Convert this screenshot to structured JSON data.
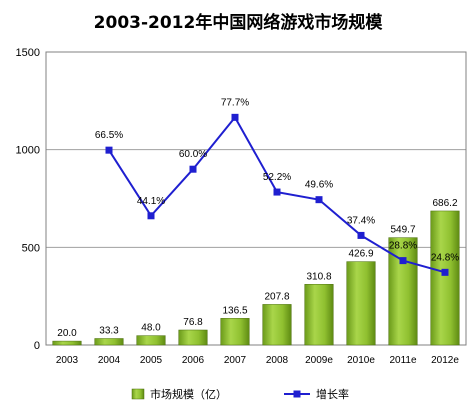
{
  "chart_data": {
    "type": "bar",
    "title": "2003-2012年中国网络游戏市场规模",
    "categories": [
      "2003",
      "2004",
      "2005",
      "2006",
      "2007",
      "2008",
      "2009e",
      "2010e",
      "2011e",
      "2012e"
    ],
    "series": [
      {
        "name": "市场规模（亿）",
        "type": "bar",
        "values": [
          20.0,
          33.3,
          48.0,
          76.8,
          136.5,
          207.8,
          310.8,
          426.9,
          549.7,
          686.2
        ],
        "labels": [
          "20.0",
          "33.3",
          "48.0",
          "76.8",
          "136.5",
          "207.8",
          "310.8",
          "426.9",
          "549.7",
          "686.2"
        ],
        "color": "#99cc33"
      },
      {
        "name": "增长率",
        "type": "line",
        "values": [
          null,
          66.5,
          44.1,
          60.0,
          77.7,
          52.2,
          49.6,
          37.4,
          28.8,
          24.8
        ],
        "labels": [
          "",
          "66.5%",
          "44.1%",
          "60.0%",
          "77.7%",
          "52.2%",
          "49.6%",
          "37.4%",
          "28.8%",
          "24.8%"
        ],
        "color": "#1f1fd0"
      }
    ],
    "ylim": [
      0,
      1500
    ],
    "yticks": [
      "0",
      "500",
      "1000",
      "1500"
    ],
    "grid": true,
    "legend": "bottom"
  }
}
